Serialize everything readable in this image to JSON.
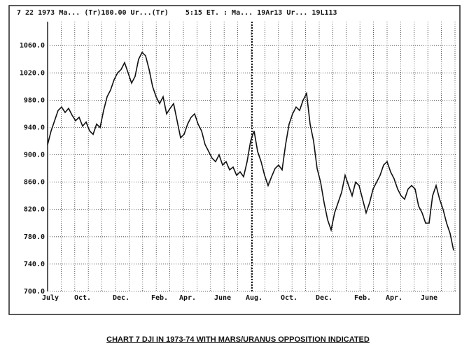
{
  "header": "7 22 1973 Ma... (Tr)180.00 Ur...(Tr)    5:15 ET. : Ma... 19Ar13 Ur... 19L113",
  "caption": "CHART 7  DJI IN 1973-74 WITH MARS/URANUS OPPOSITION INDICATED",
  "chart_data": {
    "type": "line",
    "color": "#111111",
    "grid": true,
    "categories": [
      "July",
      null,
      null,
      null,
      null,
      null,
      null,
      null,
      null,
      null,
      "Oct.",
      null,
      null,
      null,
      null,
      null,
      null,
      null,
      null,
      null,
      null,
      "Dec.",
      null,
      null,
      null,
      null,
      null,
      null,
      null,
      null,
      null,
      null,
      "Feb.",
      null,
      null,
      null,
      null,
      null,
      null,
      null,
      "Apr.",
      null,
      null,
      null,
      null,
      null,
      null,
      null,
      null,
      null,
      "June",
      null,
      null,
      null,
      null,
      null,
      null,
      null,
      null,
      "Aug.",
      null,
      null,
      null,
      null,
      null,
      null,
      null,
      null,
      null,
      "Oct.",
      null,
      null,
      null,
      null,
      null,
      null,
      null,
      null,
      null,
      "Dec.",
      null,
      null,
      null,
      null,
      null,
      null,
      null,
      null,
      null,
      null,
      "Feb.",
      null,
      null,
      null,
      null,
      null,
      null,
      null,
      null,
      "Apr.",
      null,
      null,
      null,
      null,
      null,
      null,
      null,
      null,
      null,
      "June",
      null,
      null,
      null,
      null,
      null,
      null,
      null
    ],
    "values": [
      915,
      935,
      950,
      965,
      970,
      962,
      968,
      958,
      950,
      955,
      942,
      948,
      935,
      930,
      945,
      940,
      965,
      985,
      995,
      1010,
      1020,
      1025,
      1035,
      1020,
      1005,
      1015,
      1040,
      1050,
      1045,
      1025,
      1000,
      985,
      975,
      985,
      960,
      968,
      975,
      950,
      925,
      930,
      945,
      955,
      960,
      945,
      935,
      915,
      905,
      895,
      890,
      900,
      885,
      890,
      878,
      882,
      870,
      875,
      868,
      890,
      920,
      935,
      905,
      890,
      870,
      855,
      868,
      880,
      885,
      878,
      915,
      945,
      960,
      970,
      965,
      980,
      990,
      945,
      920,
      880,
      860,
      830,
      805,
      790,
      815,
      830,
      845,
      870,
      855,
      840,
      860,
      855,
      835,
      815,
      830,
      850,
      860,
      870,
      885,
      890,
      875,
      865,
      850,
      840,
      835,
      850,
      855,
      850,
      825,
      815,
      800,
      800,
      840,
      855,
      835,
      820,
      800,
      785,
      760
    ],
    "ylim": [
      700,
      1095
    ],
    "yticks": [
      {
        "value": 700,
        "label": "700.0"
      },
      {
        "value": 740,
        "label": "740.0"
      },
      {
        "value": 780,
        "label": "780.0"
      },
      {
        "value": 820,
        "label": "820.0"
      },
      {
        "value": 860,
        "label": "860.0"
      },
      {
        "value": 900,
        "label": "900.0"
      },
      {
        "value": 940,
        "label": "940.0"
      },
      {
        "value": 980,
        "label": "980.0"
      },
      {
        "value": 1020,
        "label": "1020.0"
      },
      {
        "value": 1060,
        "label": "1060.0"
      }
    ]
  }
}
